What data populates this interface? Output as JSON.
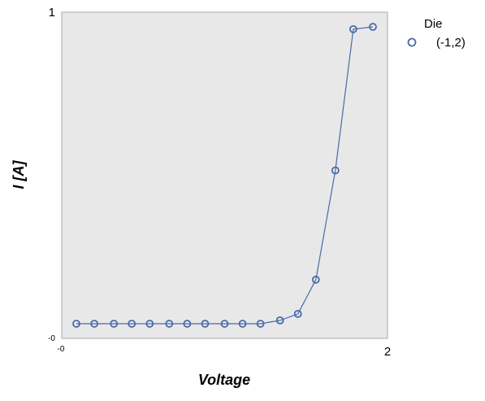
{
  "chart_data": {
    "type": "line",
    "xlabel": "Voltage",
    "ylabel": "I [A]",
    "xlim": [
      0,
      2
    ],
    "ylim": [
      0,
      1
    ],
    "x_tick_labels": {
      "min": "-0",
      "max": "2"
    },
    "y_tick_labels": {
      "min": "-0",
      "max": "1"
    },
    "grid": false,
    "legend": {
      "title": "Die",
      "placement": "right"
    },
    "series": [
      {
        "name": "(-1,2)",
        "color": "#4a6aa8",
        "marker": "circle-open",
        "x": [
          0.09,
          0.2,
          0.32,
          0.43,
          0.54,
          0.66,
          0.77,
          0.88,
          1.0,
          1.11,
          1.22,
          1.34,
          1.45,
          1.56,
          1.68,
          1.79,
          1.91
        ],
        "y": [
          0.045,
          0.045,
          0.045,
          0.045,
          0.045,
          0.045,
          0.045,
          0.045,
          0.045,
          0.045,
          0.045,
          0.055,
          0.075,
          0.18,
          0.515,
          0.948,
          0.955
        ]
      }
    ]
  }
}
